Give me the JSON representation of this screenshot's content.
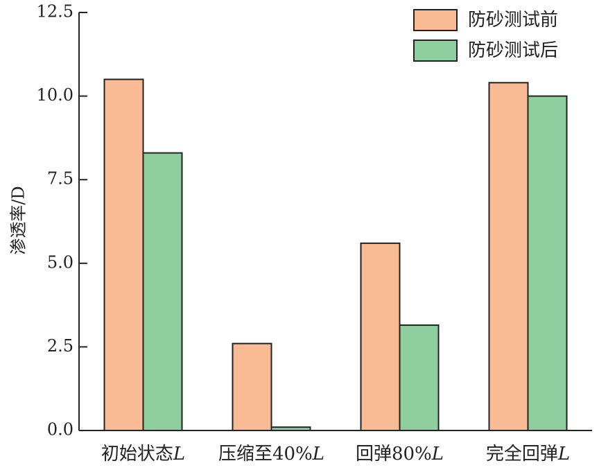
{
  "chart_data": {
    "type": "bar",
    "categories": [
      {
        "text": "初始状态",
        "italic_suffix": "L"
      },
      {
        "text": "压缩至40%",
        "italic_suffix": "L"
      },
      {
        "text": "回弹80%",
        "italic_suffix": "L"
      },
      {
        "text": "完全回弹",
        "italic_suffix": "L"
      }
    ],
    "series": [
      {
        "name": "防砂测试前",
        "color": "#f8bb93",
        "values": [
          10.5,
          2.6,
          5.6,
          10.4
        ]
      },
      {
        "name": "防砂测试后",
        "color": "#8fcf9e",
        "values": [
          8.3,
          0.1,
          3.15,
          10.0
        ]
      }
    ],
    "title": "",
    "xlabel": "",
    "ylabel": "渗透率/D",
    "ylim": [
      0,
      12.5
    ],
    "yticks": [
      {
        "value": 0,
        "label": "0.0"
      },
      {
        "value": 2.5,
        "label": "2.5"
      },
      {
        "value": 5,
        "label": "5.0"
      },
      {
        "value": 7.5,
        "label": "7.5"
      },
      {
        "value": 10,
        "label": "10.0"
      },
      {
        "value": 12.5,
        "label": "12.5"
      }
    ],
    "grid": false,
    "legend_position": "top-right"
  }
}
